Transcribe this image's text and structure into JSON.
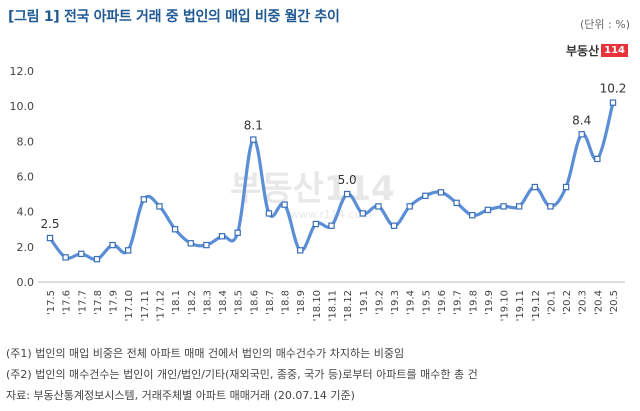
{
  "header": {
    "title": "[그림 1] 전국 아파트 거래 중 법인의 매입 비중 월간 추이",
    "unit": "(단위 : %)",
    "brand_text": "부동산",
    "brand_box": "114",
    "watermark": "부동산114",
    "watermark_url": "www.r114.com"
  },
  "chart_data": {
    "type": "line",
    "title": "",
    "xlabel": "",
    "ylabel": "",
    "ylim": [
      0,
      12
    ],
    "yticks": [
      "0.0",
      "2.0",
      "4.0",
      "6.0",
      "8.0",
      "10.0",
      "12.0"
    ],
    "grid": false,
    "line_color": "#5b8ed6",
    "categories": [
      "'17.5",
      "'17.6",
      "'17.7",
      "'17.8",
      "'17.9",
      "'17.10",
      "'17.11",
      "'17.12",
      "'18.1",
      "'18.2",
      "'18.3",
      "'18.4",
      "'18.5",
      "'18.6",
      "'18.7",
      "'18.8",
      "'18.9",
      "'18.10",
      "'18.11",
      "'18.12",
      "'19.1",
      "'19.2",
      "'19.3",
      "'19.4",
      "'19.5",
      "'19.6",
      "'19.7",
      "'19.8",
      "'19.9",
      "'19.10",
      "'19.11",
      "'19.12",
      "'20.1",
      "'20.2",
      "'20.3",
      "'20.4",
      "'20.5"
    ],
    "values": [
      2.5,
      1.4,
      1.6,
      1.3,
      2.1,
      1.8,
      4.7,
      4.3,
      3.0,
      2.2,
      2.1,
      2.6,
      2.8,
      8.1,
      3.9,
      4.4,
      1.8,
      3.3,
      3.2,
      5.0,
      3.9,
      4.3,
      3.2,
      4.3,
      4.9,
      5.1,
      4.5,
      3.8,
      4.1,
      4.3,
      4.3,
      5.4,
      4.3,
      5.4,
      8.4,
      7.0,
      10.2
    ],
    "labels": {
      "0": "2.5",
      "13": "8.1",
      "19": "5.0",
      "34": "8.4",
      "36": "10.2"
    }
  },
  "notes": [
    "(주1) 법인의 매입 비중은 전체 아파트 매매 건에서 법인의 매수건수가 차지하는 비중임",
    "(주2) 법인의 매수건수는 법인이 개인/법인/기타(재외국민, 종중, 국가 등)로부터 아파트를 매수한 총 건",
    "자료: 부동산통계정보시스템, 거래주체별 아파트 매매거래 (20.07.14 기준)"
  ]
}
